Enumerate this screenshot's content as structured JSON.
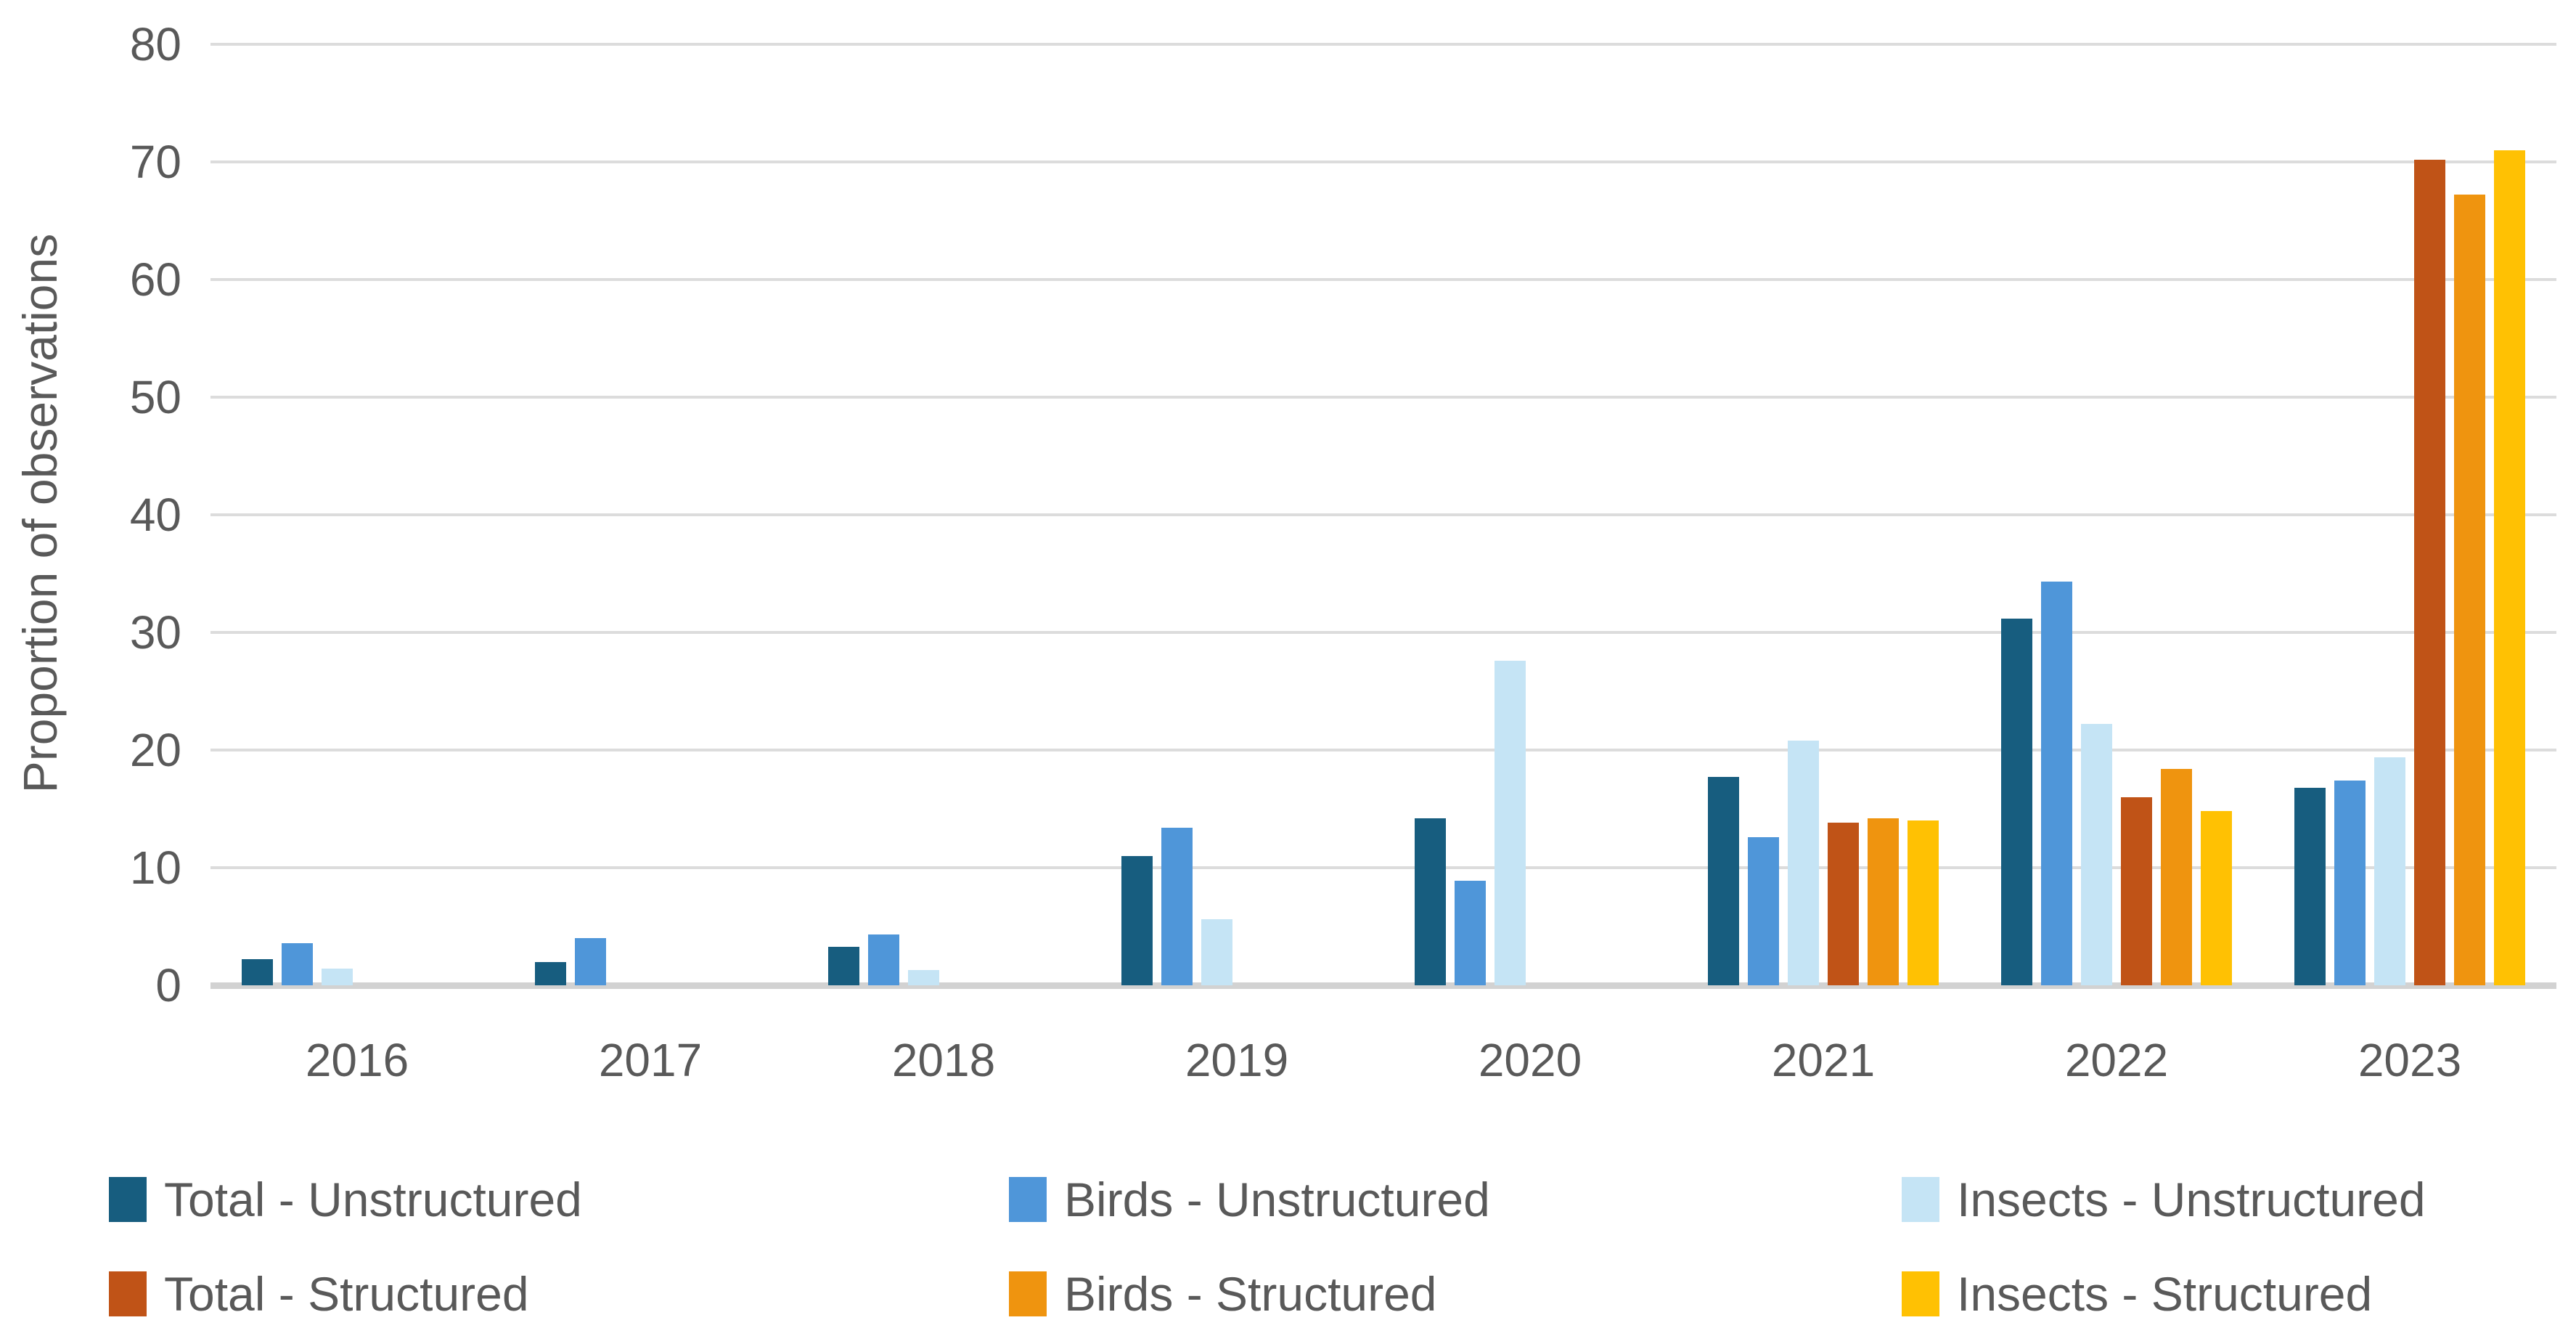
{
  "chart_data": {
    "type": "bar",
    "title": "",
    "ylabel": "Proportion of observations",
    "xlabel": "",
    "ylim": [
      0,
      80
    ],
    "yticks": [
      0,
      10,
      20,
      30,
      40,
      50,
      60,
      70,
      80
    ],
    "grid": true,
    "legend_position": "bottom",
    "categories": [
      "2016",
      "2017",
      "2018",
      "2019",
      "2020",
      "2021",
      "2022",
      "2023"
    ],
    "series": [
      {
        "name": "Total - Unstructured",
        "color": "#175D7F",
        "values": [
          2.2,
          2.0,
          3.3,
          11.0,
          14.2,
          17.7,
          31.2,
          16.8
        ]
      },
      {
        "name": "Birds - Unstructured",
        "color": "#4F96D9",
        "values": [
          3.6,
          4.0,
          4.3,
          13.4,
          8.9,
          12.6,
          34.3,
          17.4
        ]
      },
      {
        "name": "Insects - Unstructured",
        "color": "#C5E4F5",
        "values": [
          1.4,
          0,
          1.3,
          5.6,
          27.6,
          20.8,
          22.2,
          19.4
        ]
      },
      {
        "name": "Total - Structured",
        "color": "#C05317",
        "values": [
          0,
          0,
          0,
          0,
          0,
          13.8,
          16.0,
          70.2
        ]
      },
      {
        "name": "Birds - Structured",
        "color": "#EF940F",
        "values": [
          0,
          0,
          0,
          0,
          0,
          14.2,
          18.4,
          67.2
        ]
      },
      {
        "name": "Insects - Structured",
        "color": "#FFC103",
        "values": [
          0,
          0,
          0,
          0,
          0,
          14.0,
          14.8,
          71.0
        ]
      }
    ],
    "colors": {
      "grid": "#DCDCDC",
      "axis": "#D2D2D2",
      "text": "#595959"
    }
  }
}
